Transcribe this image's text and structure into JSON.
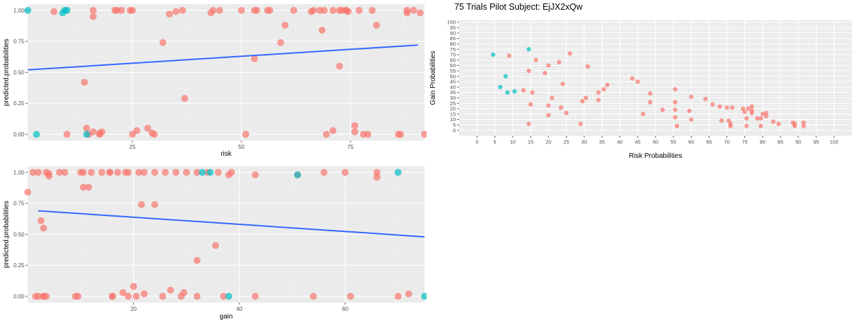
{
  "colors": {
    "panel": "#ebebeb",
    "grid_major": "#ffffff",
    "grid_minor": "#f4f4f4",
    "red": "#f8766d",
    "teal": "#00bfc4",
    "line": "#3366ff"
  },
  "chart_data": [
    {
      "id": "risk-plot",
      "type": "scatter",
      "title": "",
      "xlabel": "risk",
      "ylabel": "predicted.probabilities",
      "xlim": [
        1,
        92
      ],
      "ylim": [
        -0.05,
        1.05
      ],
      "xticks": [
        25,
        50,
        75
      ],
      "yticks": [
        0.0,
        0.25,
        0.5,
        0.75,
        1.0
      ],
      "ytick_labels": [
        "0.00",
        "0.25",
        "0.50",
        "0.75",
        "1.00"
      ],
      "trend_line": {
        "x": [
          1,
          90.5
        ],
        "y": [
          0.52,
          0.72
        ]
      },
      "series": [
        {
          "color_key": "red",
          "points": [
            [
              7,
              0.99
            ],
            [
              10,
              0
            ],
            [
              14,
              0.42
            ],
            [
              14.5,
              0.05
            ],
            [
              15,
              0
            ],
            [
              16,
              1
            ],
            [
              16,
              0.95
            ],
            [
              16,
              0.02
            ],
            [
              17.5,
              0
            ],
            [
              17.5,
              0.01
            ],
            [
              18,
              0.02
            ],
            [
              21,
              1
            ],
            [
              21.5,
              1
            ],
            [
              22.5,
              1
            ],
            [
              24.5,
              1
            ],
            [
              25,
              1
            ],
            [
              25,
              0
            ],
            [
              26,
              0.03
            ],
            [
              28.5,
              0.05
            ],
            [
              29.5,
              0.01
            ],
            [
              30,
              0
            ],
            [
              32,
              0.74
            ],
            [
              33.5,
              0.97
            ],
            [
              35,
              0.99
            ],
            [
              36.5,
              1
            ],
            [
              37,
              0.29
            ],
            [
              43,
              0.98
            ],
            [
              43.5,
              1
            ],
            [
              45,
              1
            ],
            [
              50,
              1
            ],
            [
              51,
              0
            ],
            [
              53,
              0.61
            ],
            [
              53,
              1
            ],
            [
              53.5,
              1
            ],
            [
              56,
              1
            ],
            [
              56.5,
              1
            ],
            [
              59,
              0.74
            ],
            [
              60,
              0.88
            ],
            [
              62,
              1
            ],
            [
              66,
              0.99
            ],
            [
              66.5,
              1
            ],
            [
              68,
              1
            ],
            [
              68.5,
              0.84
            ],
            [
              69,
              1
            ],
            [
              69.5,
              0
            ],
            [
              71,
              0.03
            ],
            [
              71,
              1
            ],
            [
              72.5,
              0.55
            ],
            [
              72.5,
              1
            ],
            [
              73,
              1
            ],
            [
              74,
              1
            ],
            [
              74,
              1
            ],
            [
              74.5,
              0.99
            ],
            [
              76,
              0.07
            ],
            [
              76,
              0.02
            ],
            [
              77,
              1
            ],
            [
              78,
              0
            ],
            [
              79,
              0
            ],
            [
              80,
              1
            ],
            [
              81,
              0.88
            ],
            [
              86,
              0
            ],
            [
              86.5,
              0
            ],
            [
              88,
              1
            ],
            [
              88,
              0.98
            ],
            [
              89.5,
              1
            ],
            [
              91,
              0.98
            ],
            [
              92,
              0
            ]
          ]
        },
        {
          "color_key": "teal",
          "points": [
            [
              1,
              1
            ],
            [
              3,
              0
            ],
            [
              9,
              0.98
            ],
            [
              9.5,
              1
            ],
            [
              10,
              1
            ],
            [
              14.5,
              0
            ]
          ]
        }
      ]
    },
    {
      "id": "gain-plot",
      "type": "scatter",
      "title": "",
      "xlabel": "gain",
      "ylabel": "predicted.probabilities",
      "xlim": [
        0,
        75
      ],
      "ylim": [
        -0.05,
        1.05
      ],
      "xticks": [
        20,
        40,
        60
      ],
      "yticks": [
        0.0,
        0.25,
        0.5,
        0.75,
        1.0
      ],
      "ytick_labels": [
        "0.00",
        "0.25",
        "0.50",
        "0.75",
        "1.00"
      ],
      "trend_line": {
        "x": [
          2,
          75
        ],
        "y": [
          0.69,
          0.48
        ]
      },
      "series": [
        {
          "color_key": "red",
          "points": [
            [
              0,
              0.84
            ],
            [
              1,
              1
            ],
            [
              1.5,
              0
            ],
            [
              2,
              0
            ],
            [
              2,
              1
            ],
            [
              2.5,
              0.61
            ],
            [
              3,
              0.55
            ],
            [
              3,
              0
            ],
            [
              3,
              0
            ],
            [
              3.5,
              0
            ],
            [
              3.5,
              1
            ],
            [
              4,
              0.97
            ],
            [
              4,
              0.99
            ],
            [
              6,
              1
            ],
            [
              7,
              1
            ],
            [
              9,
              0
            ],
            [
              9.5,
              0
            ],
            [
              10,
              1
            ],
            [
              10.5,
              1
            ],
            [
              10.5,
              0.88
            ],
            [
              11.5,
              0.88
            ],
            [
              12,
              1
            ],
            [
              14,
              1
            ],
            [
              15.5,
              1
            ],
            [
              15.5,
              1
            ],
            [
              16,
              0
            ],
            [
              16,
              0
            ],
            [
              17,
              1
            ],
            [
              18,
              0.03
            ],
            [
              18.5,
              1
            ],
            [
              19,
              1
            ],
            [
              19,
              0
            ],
            [
              20,
              0.08
            ],
            [
              20.5,
              0
            ],
            [
              21,
              1
            ],
            [
              21.5,
              0.74
            ],
            [
              22,
              1
            ],
            [
              22,
              0.02
            ],
            [
              24,
              0.74
            ],
            [
              24,
              1
            ],
            [
              25.5,
              0
            ],
            [
              26,
              1
            ],
            [
              27,
              0.05
            ],
            [
              28,
              1
            ],
            [
              29,
              0
            ],
            [
              29.5,
              0.03
            ],
            [
              30,
              1
            ],
            [
              32,
              0.29
            ],
            [
              32,
              1
            ],
            [
              32,
              0
            ],
            [
              34,
              1
            ],
            [
              35.5,
              0.41
            ],
            [
              36,
              1
            ],
            [
              37,
              0
            ],
            [
              38,
              0.98
            ],
            [
              38.5,
              1
            ],
            [
              43,
              0.98
            ],
            [
              43,
              0
            ],
            [
              51,
              0.98
            ],
            [
              54,
              0
            ],
            [
              56,
              1
            ],
            [
              60,
              1
            ],
            [
              61,
              0
            ],
            [
              66,
              1
            ],
            [
              66,
              0.96
            ],
            [
              70,
              0
            ],
            [
              72,
              0.02
            ]
          ]
        },
        {
          "color_key": "teal",
          "points": [
            [
              33,
              1
            ],
            [
              34.5,
              1
            ],
            [
              38,
              0
            ],
            [
              51,
              0.98
            ],
            [
              70,
              1
            ],
            [
              75,
              0
            ]
          ]
        }
      ]
    },
    {
      "id": "trials-plot",
      "type": "scatter",
      "title": "75 Trials Pilot Subject:  EjJX2xQw",
      "xlabel": "Risk Probabilities",
      "ylabel": "Gain Probabilities",
      "xlim": [
        -5,
        105
      ],
      "ylim": [
        -5,
        102
      ],
      "xticks": [
        0,
        5,
        10,
        15,
        20,
        25,
        30,
        35,
        40,
        45,
        50,
        55,
        60,
        65,
        70,
        75,
        80,
        85,
        90,
        95,
        100
      ],
      "yticks": [
        0,
        5,
        10,
        15,
        20,
        25,
        30,
        35,
        40,
        45,
        50,
        55,
        60,
        65,
        70,
        75,
        80,
        85,
        90,
        95,
        100
      ],
      "series": [
        {
          "color_key": "red",
          "points": [
            [
              9,
              69
            ],
            [
              13,
              37
            ],
            [
              14.5,
              55
            ],
            [
              14.5,
              6
            ],
            [
              15,
              24
            ],
            [
              15.5,
              35
            ],
            [
              16.5,
              65
            ],
            [
              19,
              53
            ],
            [
              20,
              60
            ],
            [
              20,
              23
            ],
            [
              20,
              14
            ],
            [
              21,
              30
            ],
            [
              23,
              63
            ],
            [
              23.5,
              21
            ],
            [
              24,
              43
            ],
            [
              25,
              16
            ],
            [
              26,
              71
            ],
            [
              29,
              6
            ],
            [
              29.5,
              27
            ],
            [
              30.5,
              30
            ],
            [
              31,
              59
            ],
            [
              34,
              35
            ],
            [
              34,
              28
            ],
            [
              35.5,
              38
            ],
            [
              36.5,
              42
            ],
            [
              43.5,
              48
            ],
            [
              45,
              45
            ],
            [
              46.5,
              15
            ],
            [
              48.5,
              34
            ],
            [
              48.5,
              26
            ],
            [
              52,
              19
            ],
            [
              55.5,
              38
            ],
            [
              55.5,
              26
            ],
            [
              55.5,
              19
            ],
            [
              55.5,
              12
            ],
            [
              56,
              4
            ],
            [
              59.5,
              18
            ],
            [
              60,
              31
            ],
            [
              60,
              10
            ],
            [
              64,
              29
            ],
            [
              66,
              24
            ],
            [
              68,
              22
            ],
            [
              68.5,
              9
            ],
            [
              70,
              21
            ],
            [
              70.5,
              9
            ],
            [
              71,
              4
            ],
            [
              71,
              6
            ],
            [
              71.5,
              21
            ],
            [
              74.5,
              20
            ],
            [
              75,
              17
            ],
            [
              75.5,
              4
            ],
            [
              75.5,
              11
            ],
            [
              76,
              20
            ],
            [
              77,
              22
            ],
            [
              77,
              16
            ],
            [
              77,
              18
            ],
            [
              78.5,
              11
            ],
            [
              79.5,
              4
            ],
            [
              79.5,
              11
            ],
            [
              80,
              15
            ],
            [
              81,
              16
            ],
            [
              81,
              13
            ],
            [
              83,
              8
            ],
            [
              84.5,
              6
            ],
            [
              88.5,
              7
            ],
            [
              89,
              4
            ],
            [
              89,
              6
            ],
            [
              91.5,
              7
            ],
            [
              91.5,
              4
            ]
          ]
        },
        {
          "color_key": "teal",
          "points": [
            [
              4.5,
              70
            ],
            [
              6.5,
              40
            ],
            [
              8,
              50
            ],
            [
              8.5,
              35
            ],
            [
              10.5,
              36
            ],
            [
              14.5,
              75
            ]
          ]
        }
      ]
    }
  ]
}
